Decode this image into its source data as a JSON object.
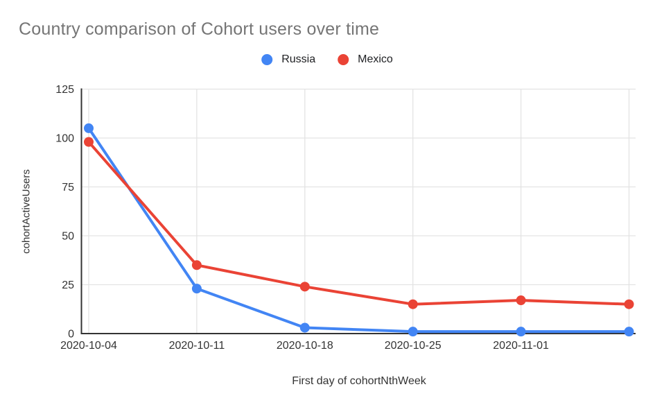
{
  "chart_data": {
    "type": "line",
    "title": "Country comparison of Cohort users over time",
    "xlabel": "First day of cohortNthWeek",
    "ylabel": "cohortActiveUsers",
    "categories": [
      "2020-10-04",
      "2020-10-11",
      "2020-10-18",
      "2020-10-25",
      "2020-11-01",
      ""
    ],
    "series": [
      {
        "name": "Russia",
        "color": "#4285F4",
        "values": [
          105,
          23,
          3,
          1,
          1,
          1
        ]
      },
      {
        "name": "Mexico",
        "color": "#EA4335",
        "values": [
          98,
          35,
          24,
          15,
          17,
          15
        ]
      }
    ],
    "yticks": [
      0,
      25,
      50,
      75,
      100,
      125
    ],
    "ylim": [
      0,
      125
    ],
    "grid": true,
    "legend_position": "top",
    "marker": "circle"
  },
  "colors": {
    "title_text": "#757575",
    "tick_text": "#333333",
    "axis_title_text": "#333333",
    "legend_text": "#202124",
    "gridline": "#e3e3e3",
    "axis_line": "#333333",
    "background": "#ffffff"
  }
}
